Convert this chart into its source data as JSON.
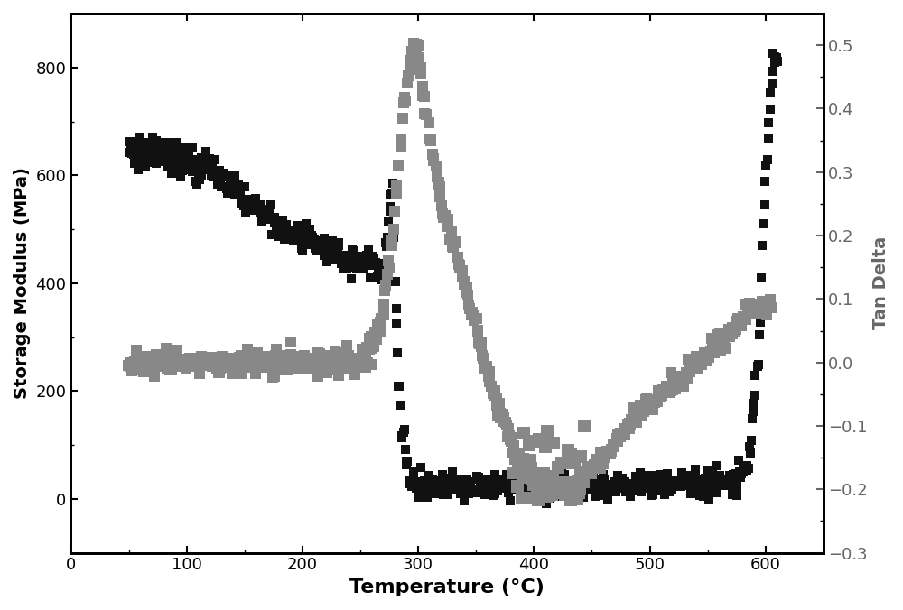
{
  "title": "",
  "xlabel": "Temperature (°C)",
  "ylabel_left": "Storage Modulus (MPa)",
  "ylabel_right": "Tan Delta",
  "xlim": [
    0,
    650
  ],
  "ylim_left": [
    -100,
    900
  ],
  "ylim_right": [
    -0.3,
    0.55
  ],
  "xticks": [
    0,
    100,
    200,
    300,
    400,
    500,
    600
  ],
  "yticks_left": [
    0,
    200,
    400,
    600,
    800
  ],
  "yticks_right": [
    -0.3,
    -0.2,
    -0.1,
    0.0,
    0.1,
    0.2,
    0.3,
    0.4,
    0.5
  ],
  "color_storage": "#111111",
  "color_tandelta": "#888888",
  "marker": "s",
  "markersize_storage": 7,
  "markersize_tandelta": 9,
  "xlabel_fontsize": 16,
  "ylabel_fontsize": 14,
  "tick_fontsize": 13,
  "background_color": "#ffffff",
  "spine_linewidth": 2.0
}
